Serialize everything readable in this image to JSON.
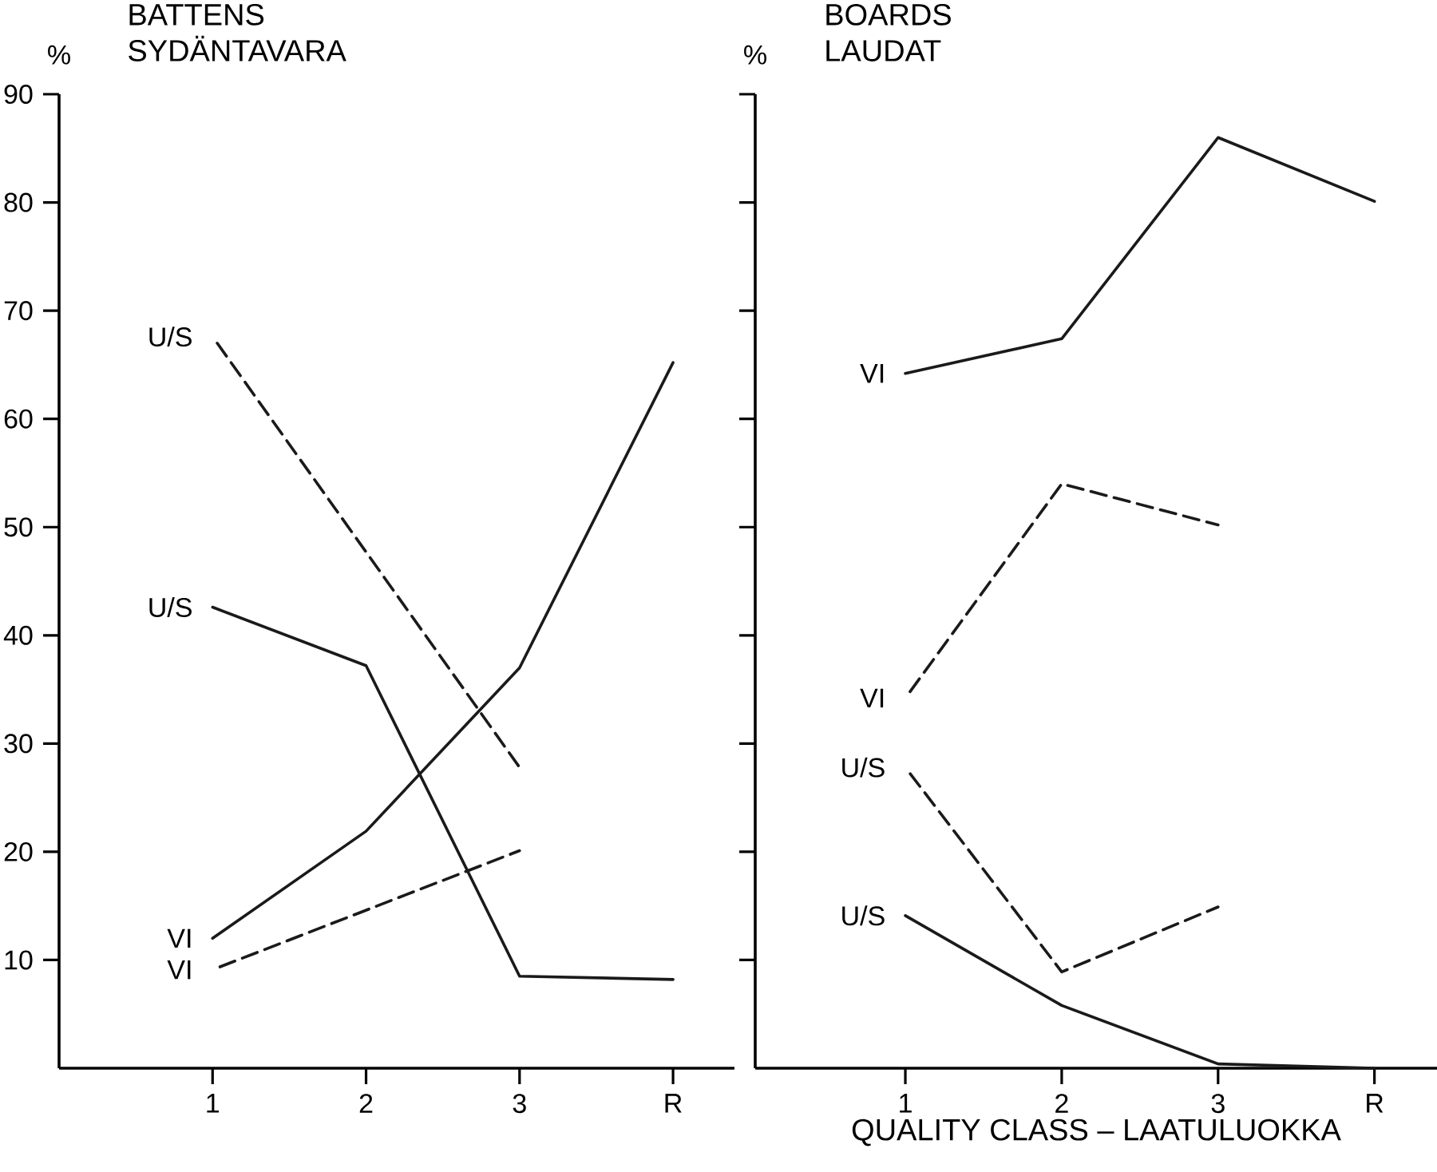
{
  "chart_data": [
    {
      "type": "line",
      "title": "BATTENS",
      "subtitle": "SYDÄNTAVARA",
      "ylabel": "%",
      "categories": [
        "1",
        "2",
        "3",
        "R"
      ],
      "ylim": [
        0,
        90
      ],
      "yticks": [
        10,
        20,
        30,
        40,
        50,
        60,
        70,
        80,
        90
      ],
      "series": [
        {
          "name": "U/S",
          "color": "#1a1a1a",
          "line_style": "solid",
          "values": [
            42.6,
            37.2,
            8.5,
            8.2
          ]
        },
        {
          "name": "VI",
          "color": "#1a1a1a",
          "line_style": "solid",
          "values": [
            12,
            21.9,
            37,
            65.2
          ]
        },
        {
          "name": "U/S",
          "color": "#1a1a1a",
          "line_style": "dashed",
          "values": [
            67.6,
            null,
            27.8,
            null
          ]
        },
        {
          "name": "VI",
          "color": "#1a1a1a",
          "line_style": "dashed",
          "values": [
            9.1,
            null,
            20.1,
            null
          ]
        }
      ]
    },
    {
      "type": "line",
      "title": "BOARDS",
      "subtitle": "LAUDAT",
      "ylabel": "%",
      "xlabel": "QUALITY CLASS – LAATULUOKKA",
      "categories": [
        "1",
        "2",
        "3",
        "R"
      ],
      "ylim": [
        0,
        90
      ],
      "tick_labels": "x",
      "yticks": [
        {
          "value": 10,
          "label": null
        },
        {
          "value": 20,
          "label": null
        },
        {
          "value": 30,
          "label": null
        },
        {
          "value": 40,
          "label": null
        },
        {
          "value": 50,
          "label": null
        },
        {
          "value": 60,
          "label": null
        },
        {
          "value": 70,
          "label": null
        },
        {
          "value": 80,
          "label": null
        },
        {
          "value": 90,
          "label": null
        }
      ],
      "series": [
        {
          "name": "VI",
          "color": "#1a1a1a",
          "line_style": "solid",
          "values": [
            64.2,
            67.4,
            86,
            80.1
          ]
        },
        {
          "name": "VI",
          "color": "#1a1a1a",
          "line_style": "dashed",
          "values": [
            34.2,
            54,
            50.2,
            null
          ]
        },
        {
          "name": "U/S",
          "color": "#1a1a1a",
          "line_style": "dashed",
          "values": [
            27.8,
            8.9,
            14.9,
            null
          ]
        },
        {
          "name": "U/S",
          "color": "#1a1a1a",
          "line_style": "solid",
          "values": [
            14.1,
            5.8,
            0.4,
            0
          ]
        }
      ]
    }
  ]
}
